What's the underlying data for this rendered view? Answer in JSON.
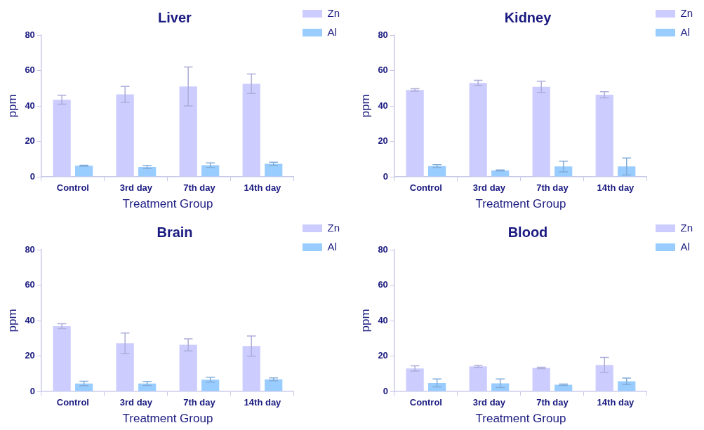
{
  "chart_data": [
    {
      "type": "bar",
      "title": "Liver",
      "xlabel": "Treatment Group",
      "ylabel": "ppm",
      "categories": [
        "Control",
        "3rd day",
        "7th day",
        "14th day"
      ],
      "ylim": [
        0,
        80
      ],
      "yticks": [
        0,
        20,
        40,
        60,
        80
      ],
      "grid": false,
      "legend": "top right",
      "series": [
        {
          "name": "Zn",
          "color": "#ccccff",
          "values": [
            43.5,
            46.5,
            51,
            52.5
          ],
          "errors": [
            2.5,
            4.5,
            11,
            5.5
          ]
        },
        {
          "name": "Al",
          "color": "#99ccff",
          "values": [
            6.2,
            5.5,
            6.5,
            7.3
          ],
          "errors": [
            0.3,
            0.8,
            1.3,
            0.9
          ]
        }
      ]
    },
    {
      "type": "bar",
      "title": "Kidney",
      "xlabel": "Treatment Group",
      "ylabel": "ppm",
      "categories": [
        "Control",
        "3rd day",
        "7th day",
        "14th day"
      ],
      "ylim": [
        0,
        80
      ],
      "yticks": [
        0,
        20,
        40,
        60,
        80
      ],
      "grid": false,
      "legend": "top right",
      "series": [
        {
          "name": "Zn",
          "color": "#ccccff",
          "values": [
            49,
            53,
            50.8,
            46.3
          ],
          "errors": [
            0.7,
            1.5,
            3.2,
            1.7
          ]
        },
        {
          "name": "Al",
          "color": "#99ccff",
          "values": [
            6,
            3.6,
            5.8,
            5.8
          ],
          "errors": [
            0.8,
            0.3,
            3,
            4.8
          ]
        }
      ]
    },
    {
      "type": "bar",
      "title": "Brain",
      "xlabel": "Treatment Group",
      "ylabel": "ppm",
      "categories": [
        "Control",
        "3rd day",
        "7th day",
        "14th day"
      ],
      "ylim": [
        0,
        80
      ],
      "yticks": [
        0,
        20,
        40,
        60,
        80
      ],
      "grid": false,
      "legend": "top right",
      "series": [
        {
          "name": "Zn",
          "color": "#ccccff",
          "values": [
            36.8,
            27.2,
            26.3,
            25.6
          ],
          "errors": [
            1.4,
            5.8,
            3.4,
            5.7
          ]
        },
        {
          "name": "Al",
          "color": "#99ccff",
          "values": [
            4.5,
            4.5,
            6.6,
            6.8
          ],
          "errors": [
            1.2,
            1.1,
            1.4,
            0.8
          ]
        }
      ]
    },
    {
      "type": "bar",
      "title": "Blood",
      "xlabel": "Treatment Group",
      "ylabel": "ppm",
      "categories": [
        "Control",
        "3rd day",
        "7th day",
        "14th day"
      ],
      "ylim": [
        0,
        80
      ],
      "yticks": [
        0,
        20,
        40,
        60,
        80
      ],
      "grid": false,
      "legend": "top right",
      "series": [
        {
          "name": "Zn",
          "color": "#ccccff",
          "values": [
            13,
            14.2,
            13.3,
            15
          ],
          "errors": [
            1.5,
            0.6,
            0.4,
            4.2
          ]
        },
        {
          "name": "Al",
          "color": "#99ccff",
          "values": [
            4.8,
            4.6,
            3.8,
            5.7
          ],
          "errors": [
            2.2,
            2.4,
            0.4,
            1.8
          ]
        }
      ]
    }
  ]
}
